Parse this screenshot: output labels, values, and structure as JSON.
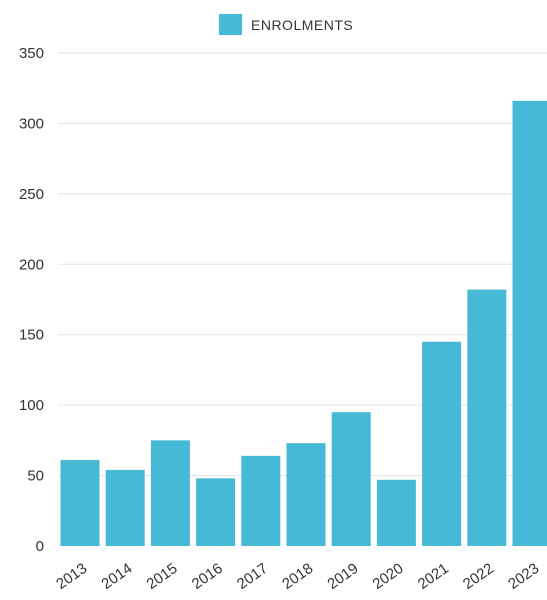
{
  "chart_data": {
    "type": "bar",
    "title": "",
    "xlabel": "",
    "ylabel": "",
    "categories": [
      "2013",
      "2014",
      "2015",
      "2016",
      "2017",
      "2018",
      "2019",
      "2020",
      "2021",
      "2022",
      "2023"
    ],
    "series": [
      {
        "name": "ENROLMENTS",
        "color": "#45b9d6",
        "values": [
          61,
          54,
          75,
          48,
          64,
          73,
          95,
          47,
          145,
          182,
          316
        ]
      }
    ],
    "ylim": [
      0,
      350
    ],
    "yticks": [
      "0",
      "50",
      "100",
      "150",
      "200",
      "250",
      "300",
      "350"
    ],
    "grid": true,
    "legend": "top-center"
  }
}
